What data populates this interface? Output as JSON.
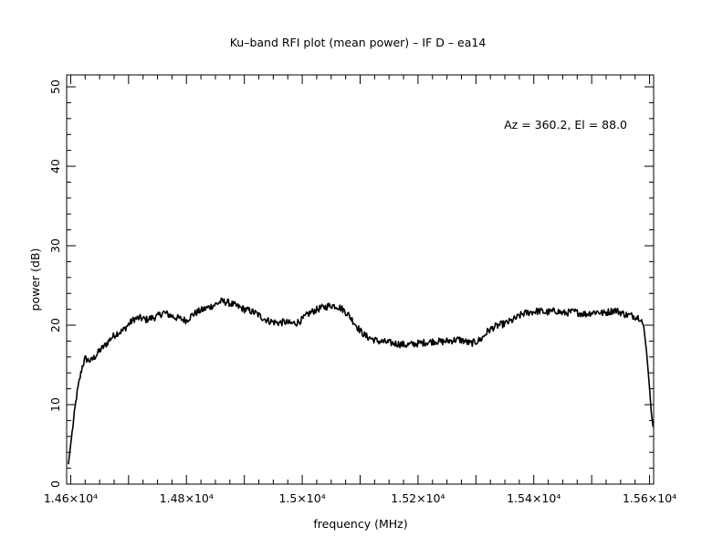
{
  "chart_data": {
    "type": "line",
    "title": "Ku–band RFI plot (mean power) – IF D – ea14",
    "xlabel": "frequency (MHz)",
    "ylabel": "power (dB)",
    "annotation": "Az = 360.2, El = 88.0",
    "xlim": [
      14593,
      15607
    ],
    "ylim": [
      0,
      51.5
    ],
    "grid": false,
    "legend": "none",
    "x_ticks": [
      {
        "value": 14600,
        "label": "1.46×10⁴"
      },
      {
        "value": 14800,
        "label": "1.48×10⁴"
      },
      {
        "value": 15000,
        "label": "1.5×10⁴"
      },
      {
        "value": 15200,
        "label": "1.52×10⁴"
      },
      {
        "value": 15400,
        "label": "1.54×10⁴"
      },
      {
        "value": 15600,
        "label": "1.56×10⁴"
      }
    ],
    "y_ticks": [
      {
        "value": 0,
        "label": "0"
      },
      {
        "value": 10,
        "label": "10"
      },
      {
        "value": 20,
        "label": "20"
      },
      {
        "value": 30,
        "label": "30"
      },
      {
        "value": 40,
        "label": "40"
      },
      {
        "value": 50,
        "label": "50"
      }
    ],
    "series": [
      {
        "color": "#000000",
        "x": [
          14596,
          14600,
          14605,
          14610,
          14615,
          14620,
          14625,
          14630,
          14635,
          14640,
          14645,
          14650,
          14660,
          14670,
          14680,
          14690,
          14700,
          14710,
          14720,
          14730,
          14740,
          14750,
          14760,
          14770,
          14780,
          14790,
          14800,
          14810,
          14820,
          14830,
          14840,
          14850,
          14860,
          14870,
          14880,
          14890,
          14900,
          14910,
          14920,
          14930,
          14940,
          14950,
          14960,
          14970,
          14980,
          14990,
          15000,
          15010,
          15020,
          15030,
          15040,
          15050,
          15060,
          15070,
          15080,
          15090,
          15100,
          15110,
          15120,
          15130,
          15140,
          15150,
          15160,
          15170,
          15180,
          15190,
          15200,
          15210,
          15220,
          15230,
          15240,
          15250,
          15260,
          15270,
          15280,
          15290,
          15300,
          15310,
          15320,
          15330,
          15340,
          15350,
          15360,
          15370,
          15380,
          15390,
          15400,
          15410,
          15420,
          15430,
          15440,
          15450,
          15460,
          15470,
          15480,
          15490,
          15500,
          15510,
          15520,
          15530,
          15540,
          15550,
          15560,
          15570,
          15580,
          15585,
          15590,
          15595,
          15600,
          15603,
          15606
        ],
        "y": [
          2.5,
          5.0,
          8.0,
          11.0,
          13.0,
          14.8,
          15.8,
          15.6,
          15.5,
          15.9,
          16.3,
          16.8,
          17.5,
          18.4,
          19.0,
          19.3,
          20.1,
          20.8,
          20.9,
          20.7,
          20.9,
          21.1,
          21.6,
          21.3,
          21.0,
          20.8,
          20.6,
          21.3,
          21.7,
          22.0,
          22.3,
          22.6,
          23.0,
          22.9,
          22.6,
          22.3,
          22.0,
          21.8,
          21.5,
          21.0,
          20.6,
          20.4,
          20.3,
          20.4,
          20.2,
          20.3,
          20.7,
          21.4,
          21.8,
          22.1,
          22.3,
          22.5,
          22.4,
          22.0,
          21.3,
          20.3,
          19.3,
          18.6,
          18.3,
          18.0,
          17.9,
          17.8,
          17.7,
          17.6,
          17.5,
          17.6,
          17.7,
          17.8,
          17.9,
          18.0,
          17.9,
          18.0,
          18.1,
          18.2,
          18.0,
          17.7,
          17.9,
          18.3,
          19.2,
          19.7,
          20.0,
          20.2,
          20.5,
          20.9,
          21.4,
          21.6,
          21.7,
          21.8,
          21.6,
          21.7,
          21.8,
          21.5,
          21.6,
          21.7,
          21.5,
          21.4,
          21.6,
          21.7,
          21.5,
          21.7,
          21.9,
          21.6,
          21.3,
          21.2,
          21.0,
          20.9,
          19.8,
          16.5,
          12.0,
          9.0,
          7.2
        ]
      }
    ]
  }
}
